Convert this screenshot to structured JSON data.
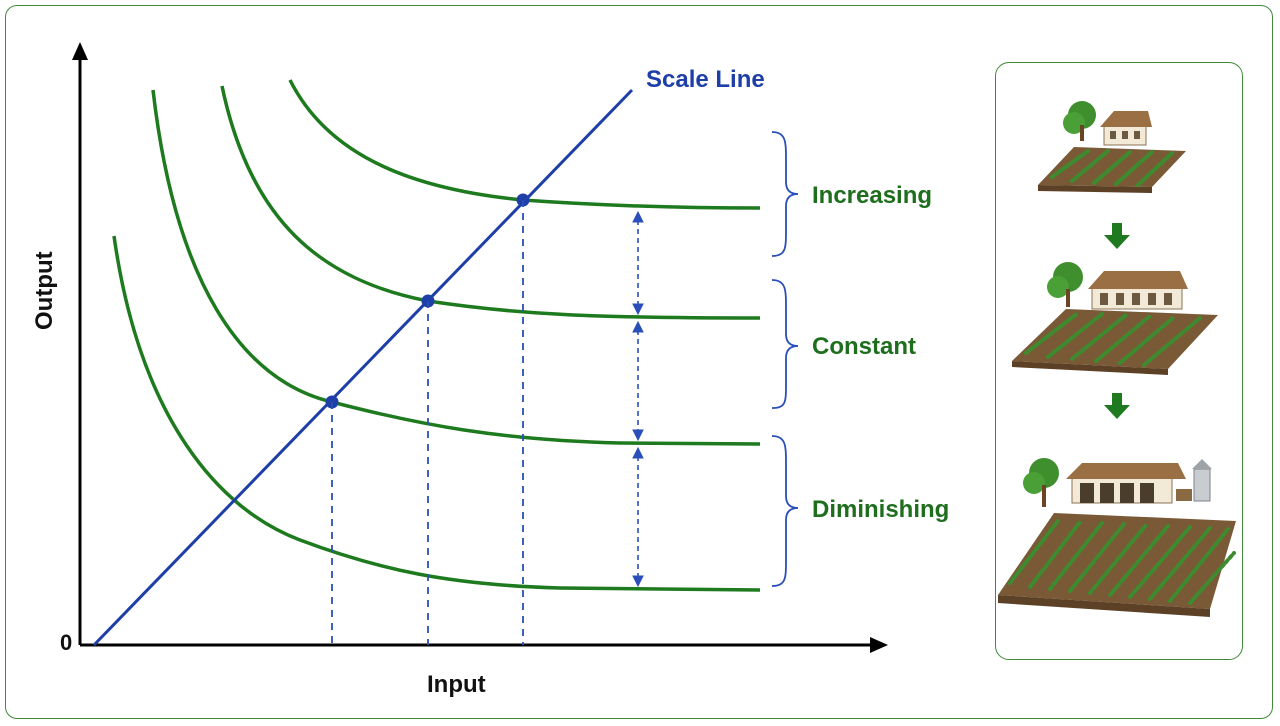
{
  "axes": {
    "x_label": "Input",
    "y_label": "Output",
    "origin_label": "0"
  },
  "scale_line": {
    "label": "Scale Line",
    "color": "#1f3fa8"
  },
  "curve_color": "#1e7a1e",
  "bracket_color": "#2a4fb8",
  "returns": [
    {
      "label": "Increasing"
    },
    {
      "label": "Constant"
    },
    {
      "label": "Diminishing"
    }
  ],
  "farm_panel": {
    "stages": [
      {
        "name": "small-farm"
      },
      {
        "name": "medium-farm"
      },
      {
        "name": "large-farm"
      }
    ],
    "arrow_icon": "down-arrow-icon"
  }
}
